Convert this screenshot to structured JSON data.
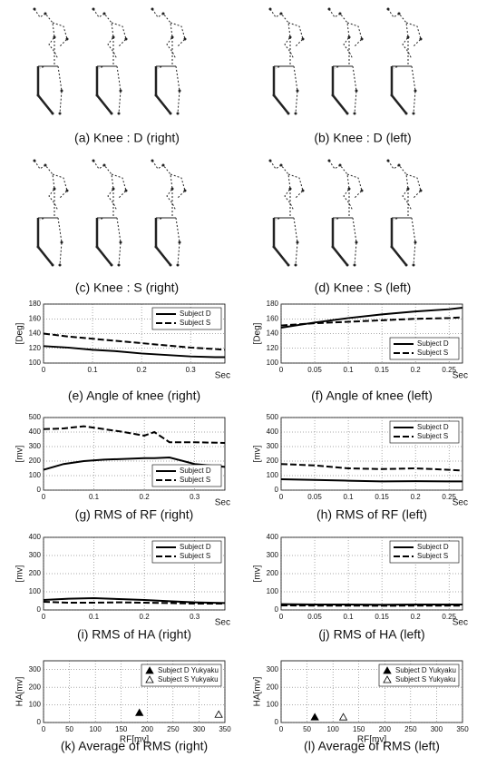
{
  "panels": [
    {
      "caption": "(a) Knee : D (right)"
    },
    {
      "caption": "(b) Knee : D (left)"
    },
    {
      "caption": "(c) Knee : S (right)"
    },
    {
      "caption": "(d) Knee : S (left)"
    }
  ],
  "chart_data": [
    {
      "type": "line",
      "caption": "(e) Angle of knee (right)",
      "ylabel": "[Deg]",
      "xlabel": "Sec",
      "xlim": [
        0,
        0.37
      ],
      "xticks": [
        0,
        0.1,
        0.2,
        0.3
      ],
      "ylim": [
        100,
        180
      ],
      "yticks": [
        100,
        120,
        140,
        160,
        180
      ],
      "grid": true,
      "legend": "upper right",
      "x": [
        0,
        0.05,
        0.1,
        0.15,
        0.2,
        0.25,
        0.3,
        0.35,
        0.37
      ],
      "series": [
        {
          "name": "Subject D",
          "color": "#000000",
          "dash": "solid",
          "values": [
            123,
            121,
            118,
            116,
            113,
            111,
            109,
            108,
            108
          ]
        },
        {
          "name": "Subject S",
          "color": "#000000",
          "dash": "dashed",
          "values": [
            140,
            136,
            133,
            130,
            127,
            124,
            121,
            119,
            118
          ]
        }
      ]
    },
    {
      "type": "line",
      "caption": "(f) Angle of knee (left)",
      "ylabel": "[Deg]",
      "xlabel": "Sec",
      "xlim": [
        0,
        0.27
      ],
      "xticks": [
        0,
        0.05,
        0.1,
        0.15,
        0.2,
        0.25
      ],
      "ylim": [
        100,
        180
      ],
      "yticks": [
        100,
        120,
        140,
        160,
        180
      ],
      "grid": true,
      "legend": "lower right",
      "x": [
        0,
        0.05,
        0.1,
        0.15,
        0.2,
        0.25,
        0.27
      ],
      "series": [
        {
          "name": "Subject D",
          "color": "#000000",
          "dash": "solid",
          "values": [
            148,
            155,
            161,
            166,
            170,
            173,
            175
          ]
        },
        {
          "name": "Subject S",
          "color": "#000000",
          "dash": "dashed",
          "values": [
            151,
            154,
            156,
            158,
            160,
            161,
            162
          ]
        }
      ]
    },
    {
      "type": "line",
      "caption": "(g) RMS of RF (right)",
      "ylabel": "[mv]",
      "xlabel": "Sec",
      "xlim": [
        0,
        0.36
      ],
      "xticks": [
        0,
        0.1,
        0.2,
        0.3
      ],
      "ylim": [
        0,
        500
      ],
      "yticks": [
        0,
        100,
        200,
        300,
        400,
        500
      ],
      "grid": true,
      "legend": "lower right",
      "x": [
        0,
        0.04,
        0.08,
        0.12,
        0.16,
        0.2,
        0.22,
        0.25,
        0.3,
        0.36
      ],
      "series": [
        {
          "name": "Subject D",
          "color": "#000000",
          "dash": "solid",
          "values": [
            140,
            180,
            200,
            210,
            215,
            220,
            220,
            225,
            180,
            160
          ]
        },
        {
          "name": "Subject S",
          "color": "#000000",
          "dash": "dashed",
          "values": [
            420,
            425,
            440,
            420,
            400,
            375,
            400,
            330,
            330,
            325
          ]
        }
      ]
    },
    {
      "type": "line",
      "caption": "(h) RMS of RF (left)",
      "ylabel": "[mv]",
      "xlabel": "Sec",
      "xlim": [
        0,
        0.27
      ],
      "xticks": [
        0,
        0.05,
        0.1,
        0.15,
        0.2,
        0.25
      ],
      "ylim": [
        0,
        500
      ],
      "yticks": [
        0,
        100,
        200,
        300,
        400,
        500
      ],
      "grid": true,
      "legend": "upper right",
      "x": [
        0,
        0.05,
        0.1,
        0.15,
        0.2,
        0.25,
        0.27
      ],
      "series": [
        {
          "name": "Subject D",
          "color": "#000000",
          "dash": "solid",
          "values": [
            75,
            70,
            65,
            60,
            62,
            60,
            60
          ]
        },
        {
          "name": "Subject S",
          "color": "#000000",
          "dash": "dashed",
          "values": [
            180,
            170,
            150,
            145,
            150,
            140,
            135
          ]
        }
      ]
    },
    {
      "type": "line",
      "caption": "(i) RMS of HA (right)",
      "ylabel": "[mv]",
      "xlabel": "Sec",
      "xlim": [
        0,
        0.36
      ],
      "xticks": [
        0,
        0.1,
        0.2,
        0.3
      ],
      "ylim": [
        0,
        400
      ],
      "yticks": [
        0,
        100,
        200,
        300,
        400
      ],
      "grid": true,
      "legend": "upper right",
      "x": [
        0,
        0.05,
        0.1,
        0.15,
        0.2,
        0.25,
        0.3,
        0.36
      ],
      "series": [
        {
          "name": "Subject D",
          "color": "#000000",
          "dash": "solid",
          "values": [
            55,
            62,
            65,
            60,
            55,
            48,
            42,
            38
          ]
        },
        {
          "name": "Subject S",
          "color": "#000000",
          "dash": "dashed",
          "values": [
            45,
            40,
            40,
            42,
            40,
            38,
            35,
            35
          ]
        }
      ]
    },
    {
      "type": "line",
      "caption": "(j) RMS of HA (left)",
      "ylabel": "[mv]",
      "xlabel": "Sec",
      "xlim": [
        0,
        0.27
      ],
      "xticks": [
        0,
        0.05,
        0.1,
        0.15,
        0.2,
        0.25
      ],
      "ylim": [
        0,
        400
      ],
      "yticks": [
        0,
        100,
        200,
        300,
        400
      ],
      "grid": true,
      "legend": "upper right",
      "x": [
        0,
        0.05,
        0.1,
        0.15,
        0.2,
        0.25,
        0.27
      ],
      "series": [
        {
          "name": "Subject D",
          "color": "#000000",
          "dash": "solid",
          "values": [
            32,
            30,
            30,
            29,
            30,
            30,
            30
          ]
        },
        {
          "name": "Subject S",
          "color": "#000000",
          "dash": "dashed",
          "values": [
            25,
            24,
            24,
            23,
            24,
            24,
            24
          ]
        }
      ]
    },
    {
      "type": "scatter",
      "caption": "(k) Average of RMS (right)",
      "ylabel": "HA[mv]",
      "xlabel": "RF[mv]",
      "xlim": [
        0,
        350
      ],
      "xticks": [
        0,
        50,
        100,
        150,
        200,
        250,
        300,
        350
      ],
      "ylim": [
        0,
        350
      ],
      "yticks": [
        0,
        100,
        200,
        300
      ],
      "grid": true,
      "legend": "upper right",
      "series": [
        {
          "name": "Subject D Yukyaku",
          "color": "#000000",
          "filled": true,
          "x": [
            185
          ],
          "values": [
            55
          ]
        },
        {
          "name": "Subject S Yukyaku",
          "color": "#000000",
          "filled": false,
          "x": [
            338
          ],
          "values": [
            45
          ]
        }
      ]
    },
    {
      "type": "scatter",
      "caption": "(l) Average of RMS (left)",
      "ylabel": "HA[mv]",
      "xlabel": "RF[mv]",
      "xlim": [
        0,
        350
      ],
      "xticks": [
        0,
        50,
        100,
        150,
        200,
        250,
        300,
        350
      ],
      "ylim": [
        0,
        350
      ],
      "yticks": [
        0,
        100,
        200,
        300
      ],
      "grid": true,
      "legend": "upper right",
      "series": [
        {
          "name": "Subject D Yukyaku",
          "color": "#000000",
          "filled": true,
          "x": [
            65
          ],
          "values": [
            30
          ]
        },
        {
          "name": "Subject S Yukyaku",
          "color": "#000000",
          "filled": false,
          "x": [
            120
          ],
          "values": [
            30
          ]
        }
      ]
    }
  ]
}
